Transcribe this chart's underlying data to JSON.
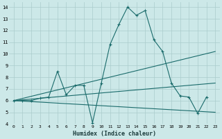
{
  "xlabel": "Humidex (Indice chaleur)",
  "bg_color": "#cce8e8",
  "grid_color": "#aacccc",
  "line_color": "#1a6b6b",
  "xlim": [
    -0.5,
    23.5
  ],
  "ylim": [
    4,
    14.4
  ],
  "xticks": [
    0,
    1,
    2,
    3,
    4,
    5,
    6,
    7,
    8,
    9,
    10,
    11,
    12,
    13,
    14,
    15,
    16,
    17,
    18,
    19,
    20,
    21,
    22,
    23
  ],
  "yticks": [
    4,
    5,
    6,
    7,
    8,
    9,
    10,
    11,
    12,
    13,
    14
  ],
  "main_curve": {
    "x": [
      0,
      1,
      2,
      3,
      4,
      5,
      6,
      7,
      8,
      9,
      10,
      11,
      12,
      13,
      14,
      15,
      16,
      17,
      18,
      19,
      20,
      21,
      22
    ],
    "y": [
      6.0,
      6.0,
      6.0,
      6.2,
      6.3,
      8.5,
      6.5,
      7.3,
      7.3,
      4.1,
      7.5,
      10.8,
      12.5,
      14.0,
      13.3,
      13.7,
      11.2,
      10.2,
      7.5,
      6.4,
      6.3,
      4.9,
      6.3
    ]
  },
  "line1": {
    "x": [
      0,
      23
    ],
    "y": [
      6.0,
      10.2
    ]
  },
  "line2": {
    "x": [
      0,
      23
    ],
    "y": [
      6.0,
      5.0
    ]
  },
  "line3": {
    "x": [
      0,
      23
    ],
    "y": [
      6.0,
      7.5
    ]
  }
}
